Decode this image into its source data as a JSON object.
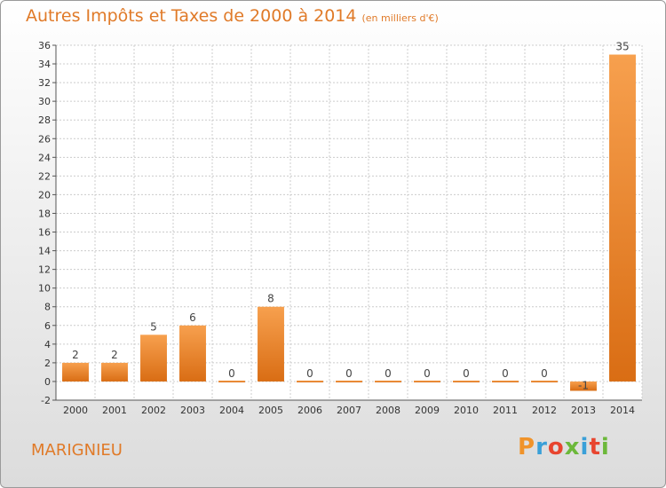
{
  "chart_data": {
    "type": "bar",
    "title": "Autres Impôts et Taxes de 2000 à 2014",
    "subtitle": "(en milliers d'€)",
    "categories": [
      "2000",
      "2001",
      "2002",
      "2003",
      "2004",
      "2005",
      "2006",
      "2007",
      "2008",
      "2009",
      "2010",
      "2011",
      "2012",
      "2013",
      "2014"
    ],
    "values": [
      2,
      2,
      5,
      6,
      0,
      8,
      0,
      0,
      0,
      0,
      0,
      0,
      0,
      -1,
      35
    ],
    "ylim": [
      -2,
      36
    ],
    "yticks": [
      -2,
      0,
      2,
      4,
      6,
      8,
      10,
      12,
      14,
      16,
      18,
      20,
      22,
      24,
      26,
      28,
      30,
      32,
      34,
      36
    ],
    "grid": true,
    "bar_color": "#e8852e"
  },
  "footer": {
    "commune": "MARIGNIEU",
    "logo_text": "Proxiti"
  }
}
